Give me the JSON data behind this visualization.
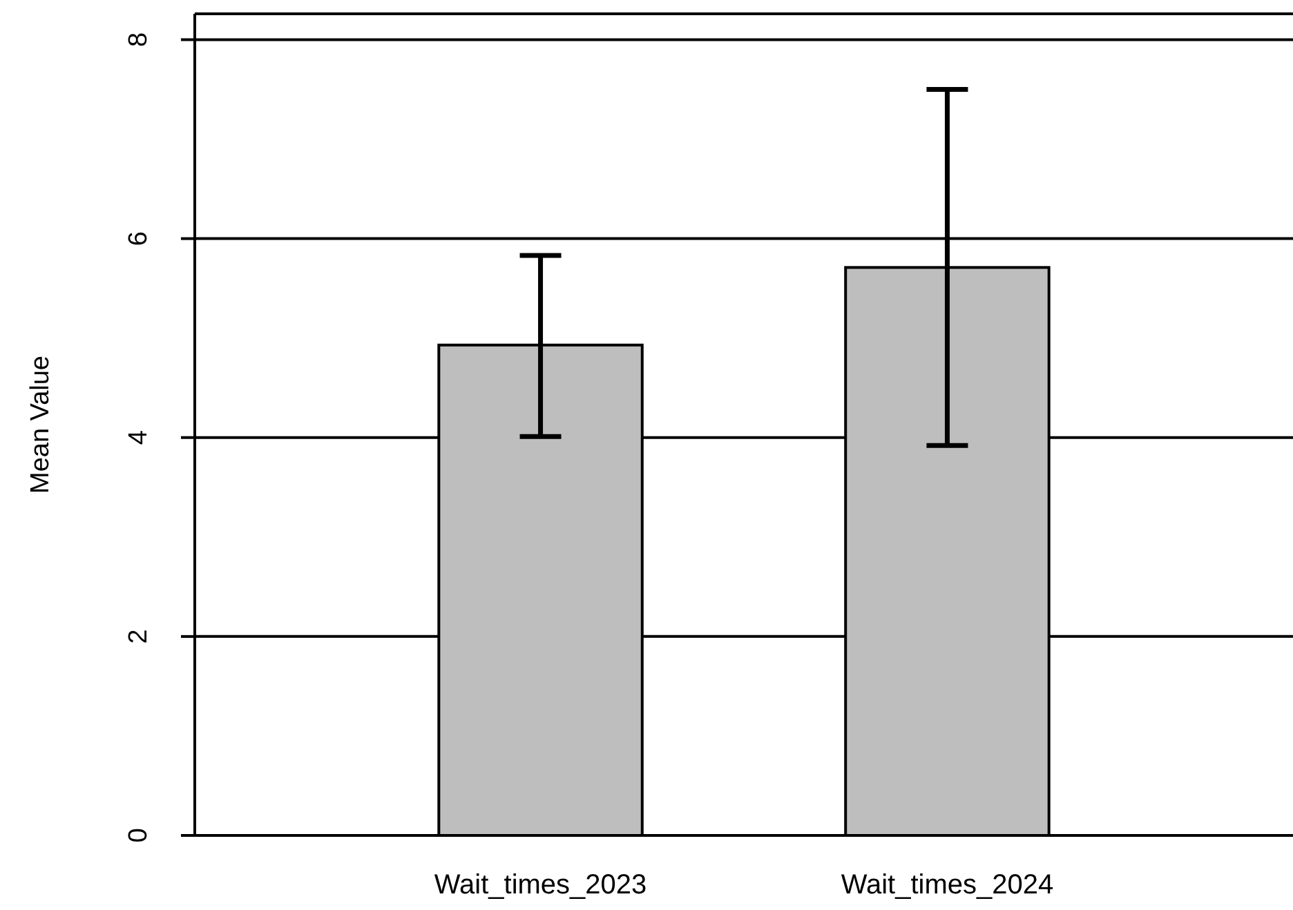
{
  "chart_data": {
    "type": "bar",
    "ylabel": "Mean Value",
    "categories": [
      "Wait_times_2023",
      "Wait_times_2024"
    ],
    "values": [
      4.93,
      5.71
    ],
    "errors": [
      [
        4.01,
        5.83
      ],
      [
        3.92,
        7.5
      ]
    ],
    "color": "#bebebe",
    "ylim": [
      0,
      8.26
    ],
    "yticks": [
      0,
      2,
      4,
      6,
      8
    ],
    "grid": "y"
  }
}
